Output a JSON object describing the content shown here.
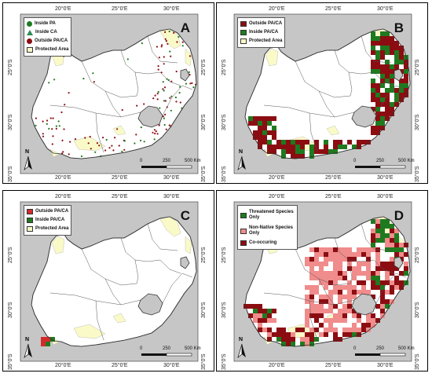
{
  "grid": {
    "top_lon": [
      "20°0'E",
      "25°0'E",
      "30°0'E"
    ],
    "bottom_lon": [
      "20°0'E",
      "25°0'E",
      "30°0'E"
    ],
    "left_lat": [
      "25°0'S",
      "30°0'S",
      "35°0'S"
    ],
    "right_lat": [
      "25°0'S",
      "30°0'S",
      "35°0'S"
    ]
  },
  "north": "N",
  "scale": {
    "ticks": [
      "0",
      "250",
      "500 Km"
    ]
  },
  "colors": {
    "background": "#c6c6c6",
    "land": "#ffffff",
    "protected_area": "#fafac8",
    "outside": "#8b0d12",
    "inside": "#1f7a1f",
    "nonnative": "#f08c8c",
    "inside_ca": "#2e8b57",
    "outside_c": "#d42a2a"
  },
  "panels": [
    {
      "id": "A",
      "letter": "A",
      "legend": [
        {
          "label": "Inside PA",
          "symbol": "green-circle-icon"
        },
        {
          "label": "Inside CA",
          "symbol": "green-triangle-icon"
        },
        {
          "label": "Outside PA/CA",
          "symbol": "red-circle-icon"
        },
        {
          "label": "Protected Area",
          "symbol": "yellow-square-icon"
        }
      ]
    },
    {
      "id": "B",
      "letter": "B",
      "legend": [
        {
          "label": "Outside PA/CA",
          "symbol": "darkred-square-icon"
        },
        {
          "label": "Inside PA/CA",
          "symbol": "green-square-icon"
        },
        {
          "label": "Protected Area",
          "symbol": "yellow-square-icon"
        }
      ]
    },
    {
      "id": "C",
      "letter": "C",
      "legend": [
        {
          "label": "Outside PA/CA",
          "symbol": "red-square-icon"
        },
        {
          "label": "Inside PA/CA",
          "symbol": "green-square-icon"
        },
        {
          "label": "Protected Area",
          "symbol": "yellow-square-icon"
        }
      ]
    },
    {
      "id": "D",
      "letter": "D",
      "legend": [
        {
          "label": "Threatened Species Only",
          "symbol": "green-square-icon"
        },
        {
          "label": "Non-Native Species Only",
          "symbol": "pink-square-icon"
        },
        {
          "label": "Co-occuring",
          "symbol": "darkred-square-icon"
        }
      ]
    }
  ]
}
